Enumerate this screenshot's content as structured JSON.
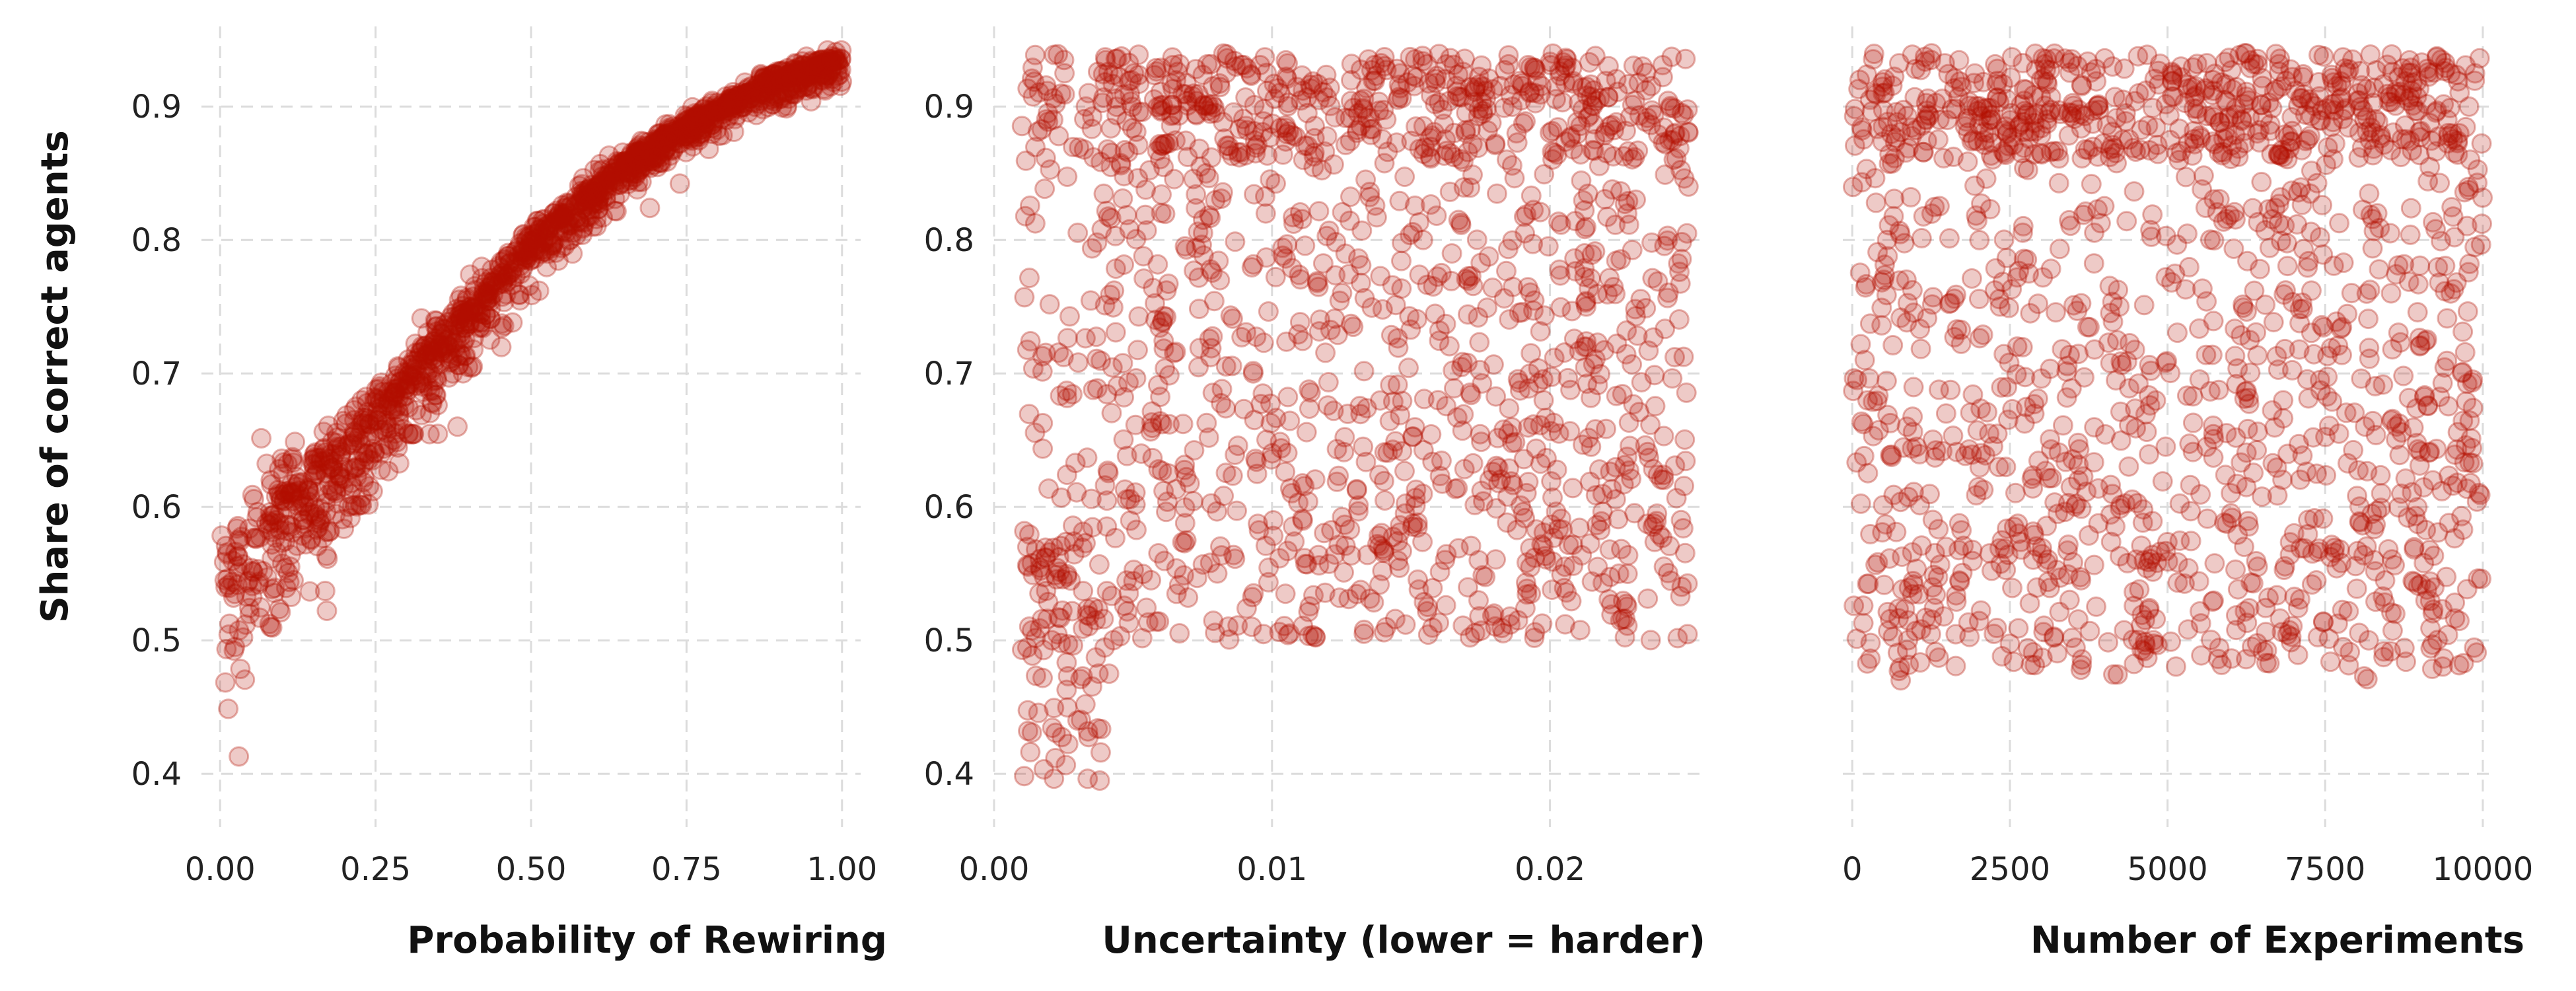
{
  "chart_data": [
    {
      "type": "scatter",
      "xlabel": "Probability of Rewiring",
      "ylabel": "Share of correct agents",
      "xlim": [
        -0.03,
        1.03
      ],
      "ylim": [
        0.36,
        0.96
      ],
      "xticks": [
        0,
        0.25,
        0.5,
        0.75,
        1
      ],
      "xtick_labels": [
        "0.00",
        "0.25",
        "0.50",
        "0.75",
        "1.00"
      ],
      "yticks": [
        0.4,
        0.5,
        0.6,
        0.7,
        0.8,
        0.9
      ],
      "ytick_labels": [
        "0.4",
        "0.5",
        "0.6",
        "0.7",
        "0.8",
        "0.9"
      ],
      "grid": true,
      "marker_color": "#b30f00",
      "marker_opacity": 0.22,
      "points_shown": 1500,
      "trend": {
        "x": [
          0,
          0.05,
          0.1,
          0.15,
          0.25,
          0.35,
          0.5,
          0.65,
          0.75,
          0.9,
          1.0
        ],
        "y": [
          0.53,
          0.565,
          0.59,
          0.615,
          0.665,
          0.72,
          0.795,
          0.855,
          0.885,
          0.92,
          0.935
        ]
      },
      "spread": "narrow band, wider below trend near x=0 (min ~0.38)"
    },
    {
      "type": "scatter",
      "xlabel": "Uncertainty (lower = harder)",
      "ylabel": "",
      "xlim": [
        0,
        0.0255
      ],
      "ylim": [
        0.36,
        0.96
      ],
      "xticks": [
        0,
        0.01,
        0.02
      ],
      "xtick_labels": [
        "0.00",
        "0.01",
        "0.02"
      ],
      "yticks": [
        0.4,
        0.5,
        0.6,
        0.7,
        0.8,
        0.9
      ],
      "ytick_labels": [
        "0.4",
        "0.5",
        "0.6",
        "0.7",
        "0.8",
        "0.9"
      ],
      "grid": true,
      "marker_color": "#b30f00",
      "marker_opacity": 0.22,
      "points_shown": 1500,
      "x_range": [
        0.001,
        0.025
      ],
      "y_range": [
        0.38,
        0.94
      ],
      "spread": "dense near 0.9, lower values more frequent at small uncertainty"
    },
    {
      "type": "scatter",
      "xlabel": "Number of Experiments",
      "ylabel": "",
      "xlim": [
        -150,
        10200
      ],
      "ylim": [
        0.36,
        0.96
      ],
      "xticks": [
        0,
        2500,
        5000,
        7500,
        10000
      ],
      "xtick_labels": [
        "0",
        "2500",
        "5000",
        "7500",
        "10000"
      ],
      "yticks": [
        0.4,
        0.5,
        0.6,
        0.7,
        0.8,
        0.9
      ],
      "ytick_labels": [],
      "grid": true,
      "marker_color": "#b30f00",
      "marker_opacity": 0.22,
      "points_shown": 1500,
      "x_range": [
        0,
        10000
      ],
      "y_range": [
        0.38,
        0.94
      ],
      "spread": "uniform in x, dense near 0.9"
    }
  ]
}
